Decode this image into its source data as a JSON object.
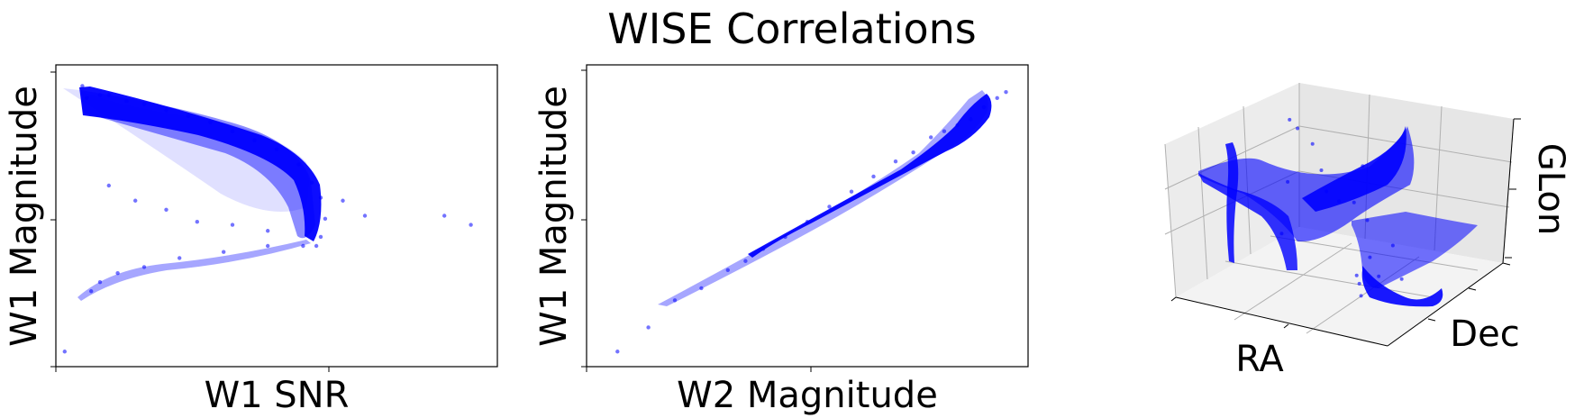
{
  "figure": {
    "title": "WISE Correlations"
  },
  "colors": {
    "points": "#0000ff",
    "pane": "#f2f2f2",
    "grid": "#b0b0b0"
  },
  "chart_data": [
    {
      "type": "scatter",
      "title": "",
      "xlabel": "W1 SNR",
      "ylabel": "W1 Magnitude",
      "xlim": [
        0,
        1.0
      ],
      "ylim": [
        0,
        1.0
      ],
      "grid": false,
      "note": "tick labels not printed",
      "series": [
        {
          "color": "#0000ff",
          "points": [
            [
              0.06,
              0.93
            ],
            [
              0.07,
              0.89
            ],
            [
              0.1,
              0.9
            ],
            [
              0.12,
              0.9
            ],
            [
              0.16,
              0.88
            ],
            [
              0.2,
              0.87
            ],
            [
              0.25,
              0.85
            ],
            [
              0.3,
              0.83
            ],
            [
              0.35,
              0.81
            ],
            [
              0.4,
              0.78
            ],
            [
              0.45,
              0.75
            ],
            [
              0.5,
              0.72
            ],
            [
              0.55,
              0.67
            ],
            [
              0.58,
              0.61
            ],
            [
              0.6,
              0.56
            ],
            [
              0.61,
              0.49
            ],
            [
              0.6,
              0.43
            ],
            [
              0.59,
              0.4
            ],
            [
              0.12,
              0.6
            ],
            [
              0.18,
              0.55
            ],
            [
              0.25,
              0.52
            ],
            [
              0.32,
              0.48
            ],
            [
              0.4,
              0.47
            ],
            [
              0.48,
              0.45
            ],
            [
              0.08,
              0.25
            ],
            [
              0.1,
              0.28
            ],
            [
              0.14,
              0.31
            ],
            [
              0.2,
              0.33
            ],
            [
              0.28,
              0.36
            ],
            [
              0.38,
              0.38
            ],
            [
              0.48,
              0.4
            ],
            [
              0.56,
              0.4
            ],
            [
              0.02,
              0.05
            ],
            [
              0.65,
              0.55
            ],
            [
              0.7,
              0.5
            ],
            [
              0.88,
              0.5
            ],
            [
              0.94,
              0.47
            ]
          ]
        }
      ]
    },
    {
      "type": "scatter",
      "title": "",
      "xlabel": "W2 Magnitude",
      "ylabel": "W1 Magnitude",
      "xlim": [
        0,
        1.0
      ],
      "ylim": [
        0,
        1.0
      ],
      "grid": false,
      "note": "tick labels not printed",
      "series": [
        {
          "color": "#0000ff",
          "points": [
            [
              0.07,
              0.05
            ],
            [
              0.14,
              0.13
            ],
            [
              0.2,
              0.22
            ],
            [
              0.26,
              0.26
            ],
            [
              0.32,
              0.32
            ],
            [
              0.36,
              0.35
            ],
            [
              0.4,
              0.39
            ],
            [
              0.45,
              0.43
            ],
            [
              0.5,
              0.48
            ],
            [
              0.55,
              0.53
            ],
            [
              0.6,
              0.58
            ],
            [
              0.65,
              0.63
            ],
            [
              0.7,
              0.68
            ],
            [
              0.74,
              0.71
            ],
            [
              0.78,
              0.76
            ],
            [
              0.81,
              0.78
            ],
            [
              0.84,
              0.8
            ],
            [
              0.87,
              0.82
            ],
            [
              0.9,
              0.86
            ],
            [
              0.93,
              0.89
            ],
            [
              0.95,
              0.91
            ]
          ]
        }
      ]
    },
    {
      "type": "scatter",
      "projection": "3d",
      "title": "",
      "xlabel": "RA",
      "ylabel": "Dec",
      "zlabel": "GLon",
      "grid": true,
      "note": "tick labels not printed",
      "series": [
        {
          "color": "#0000ff",
          "points": [
            [
              0.05,
              0.9,
              0.75
            ],
            [
              0.15,
              0.85,
              0.7
            ],
            [
              0.25,
              0.75,
              0.6
            ],
            [
              0.35,
              0.62,
              0.55
            ],
            [
              0.45,
              0.55,
              0.55
            ],
            [
              0.55,
              0.5,
              0.6
            ],
            [
              0.62,
              0.45,
              0.9
            ],
            [
              0.7,
              0.35,
              0.6
            ],
            [
              0.8,
              0.2,
              0.45
            ],
            [
              0.9,
              0.1,
              0.4
            ],
            [
              0.75,
              0.2,
              0.25
            ],
            [
              0.7,
              0.3,
              0.1
            ],
            [
              0.1,
              0.75,
              0.9
            ],
            [
              0.12,
              0.7,
              0.5
            ],
            [
              0.15,
              0.6,
              0.2
            ],
            [
              0.65,
              0.35,
              0.2
            ],
            [
              0.85,
              0.3,
              0.5
            ],
            [
              0.95,
              0.2,
              0.35
            ]
          ]
        }
      ]
    }
  ]
}
